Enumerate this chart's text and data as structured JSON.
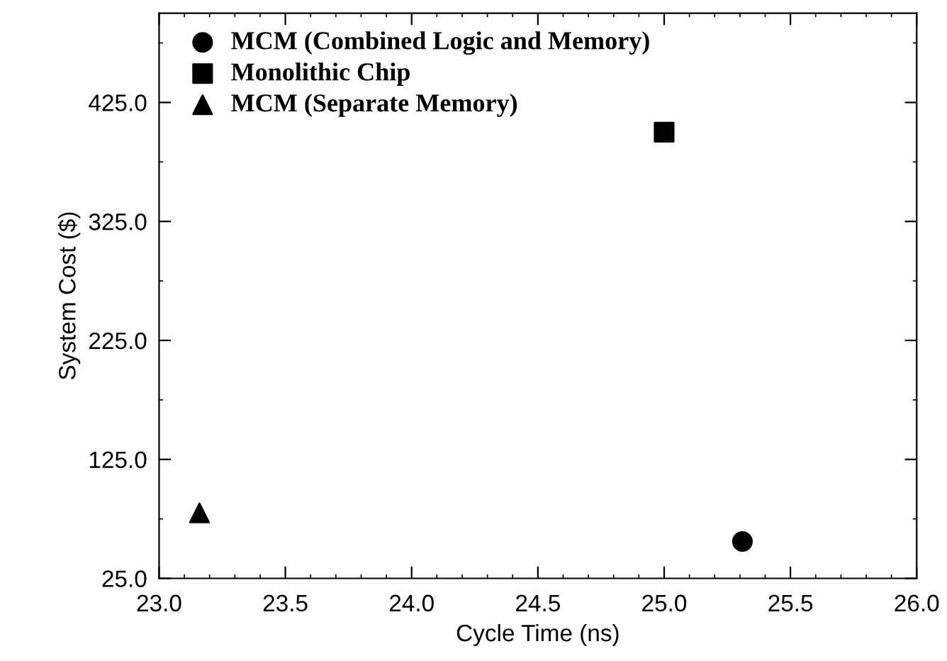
{
  "chart_data": {
    "type": "scatter",
    "xlabel": "Cycle Time (ns)",
    "ylabel": "System Cost ($)",
    "xlim": [
      23.0,
      26.0
    ],
    "xticks": [
      {
        "value": 23.0,
        "label": "23.0"
      },
      {
        "value": 23.5,
        "label": "23.5"
      },
      {
        "value": 24.0,
        "label": "24.0"
      },
      {
        "value": 24.5,
        "label": "24.5"
      },
      {
        "value": 25.0,
        "label": "25.0"
      },
      {
        "value": 25.5,
        "label": "25.5"
      },
      {
        "value": 26.0,
        "label": "26.0"
      }
    ],
    "ylim": [
      25.0,
      500.0
    ],
    "yticks": [
      {
        "value": 25.0,
        "label": "25.0"
      },
      {
        "value": 125.0,
        "label": "125.0"
      },
      {
        "value": 225.0,
        "label": "225.0"
      },
      {
        "value": 325.0,
        "label": "325.0"
      },
      {
        "value": 425.0,
        "label": "425.0"
      }
    ],
    "grid": false,
    "legend": "top left",
    "series": [
      {
        "name": "MCM (Combined Logic and Memory)",
        "color": "#000000",
        "marker": "circle",
        "x": [
          25.31
        ],
        "values": [
          56
        ]
      },
      {
        "name": "Monolithic Chip",
        "color": "#000000",
        "marker": "square",
        "x": [
          25.0
        ],
        "values": [
          400
        ]
      },
      {
        "name": "MCM (Separate Memory)",
        "color": "#000000",
        "marker": "triangle",
        "x": [
          23.16
        ],
        "values": [
          80
        ]
      }
    ]
  }
}
